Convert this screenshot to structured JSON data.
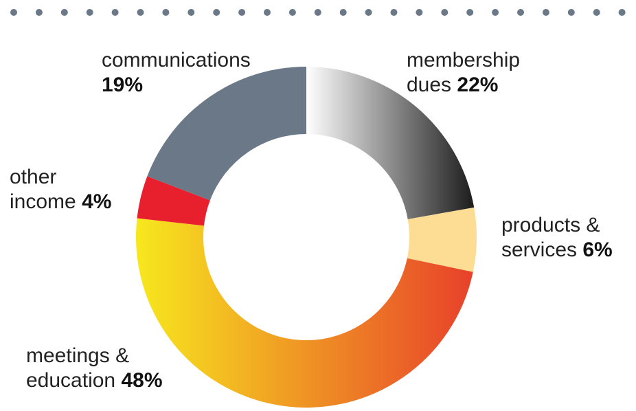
{
  "chart_data": {
    "type": "donut",
    "categories": [
      "membership dues",
      "products & services",
      "meetings & education",
      "other income",
      "communications"
    ],
    "values": [
      22,
      6,
      48,
      4,
      19
    ],
    "value_labels": [
      "22%",
      "6%",
      "48%",
      "4%",
      "19%"
    ],
    "colors": [
      [
        "#ffffff",
        "#1c1c1c"
      ],
      "#fddc94",
      [
        "#f7e81e",
        "#e8432a"
      ],
      "#e8202e",
      "#6b7888"
    ]
  }
}
